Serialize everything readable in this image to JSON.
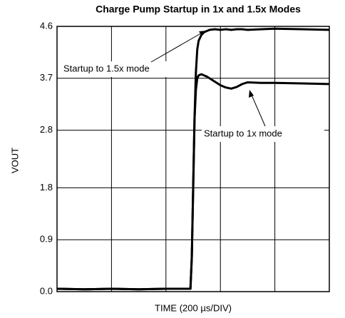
{
  "chart_data": {
    "type": "line",
    "title": "Charge Pump Startup in 1x and 1.5x Modes",
    "ylabel": "VOUT",
    "xlabel": "TIME (200 µs/DIV)",
    "annotations": [
      "Startup to 1.5x mode",
      "Startup to 1x mode"
    ],
    "x": [
      0,
      100,
      200,
      300,
      400,
      480,
      490,
      495,
      500,
      505,
      510,
      515,
      520,
      530,
      540,
      550,
      560,
      580,
      600,
      620,
      640,
      660,
      680,
      700,
      750,
      800,
      900,
      1000
    ],
    "series": [
      {
        "name": "Startup to 1.5x mode",
        "color": "#000000",
        "values": [
          0.05,
          0.04,
          0.05,
          0.04,
          0.05,
          0.05,
          0.05,
          0.6,
          1.8,
          3.0,
          3.8,
          4.2,
          4.35,
          4.45,
          4.5,
          4.52,
          4.54,
          4.55,
          4.54,
          4.55,
          4.54,
          4.55,
          4.55,
          4.54,
          4.55,
          4.56,
          4.55,
          4.54
        ]
      },
      {
        "name": "Startup to 1x mode",
        "color": "#000000",
        "values": [
          0.05,
          0.04,
          0.05,
          0.04,
          0.05,
          0.05,
          0.05,
          0.6,
          1.8,
          3.0,
          3.5,
          3.7,
          3.75,
          3.77,
          3.75,
          3.73,
          3.7,
          3.64,
          3.58,
          3.54,
          3.52,
          3.55,
          3.6,
          3.63,
          3.62,
          3.62,
          3.61,
          3.6
        ]
      }
    ],
    "xlim": [
      0,
      1000
    ],
    "xticks": [
      200,
      400,
      600,
      800
    ],
    "ylim": [
      0,
      4.6
    ],
    "yticks": [
      {
        "value": 0,
        "label": "0.0"
      },
      0.9,
      1.8,
      2.8,
      3.7,
      4.6
    ],
    "grid": true
  }
}
